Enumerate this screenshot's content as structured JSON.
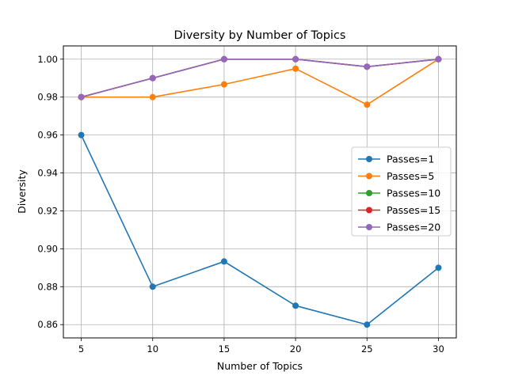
{
  "chart_data": {
    "type": "line",
    "title": "Diversity by Number of Topics",
    "xlabel": "Number of Topics",
    "ylabel": "Diversity",
    "x": [
      5,
      10,
      15,
      20,
      25,
      30
    ],
    "xticks": [
      "5",
      "10",
      "15",
      "20",
      "25",
      "30"
    ],
    "yticks": [
      "0.86",
      "0.88",
      "0.90",
      "0.92",
      "0.94",
      "0.96",
      "0.98",
      "1.00"
    ],
    "ytick_values": [
      0.86,
      0.88,
      0.9,
      0.92,
      0.94,
      0.96,
      0.98,
      1.0
    ],
    "xlim": [
      3.75,
      31.25
    ],
    "ylim": [
      0.853,
      1.007
    ],
    "grid": true,
    "legend_position": "center-right",
    "series": [
      {
        "name": "Passes=1",
        "color": "#1f77b4",
        "values": [
          0.96,
          0.88,
          0.8933,
          0.87,
          0.86,
          0.89
        ]
      },
      {
        "name": "Passes=5",
        "color": "#ff7f0e",
        "values": [
          0.98,
          0.98,
          0.9867,
          0.995,
          0.976,
          1.0
        ]
      },
      {
        "name": "Passes=10",
        "color": "#2ca02c",
        "values": [
          0.98,
          0.99,
          1.0,
          1.0,
          0.996,
          1.0
        ]
      },
      {
        "name": "Passes=15",
        "color": "#d62728",
        "values": [
          0.98,
          0.99,
          1.0,
          1.0,
          0.996,
          1.0
        ]
      },
      {
        "name": "Passes=20",
        "color": "#9467bd",
        "values": [
          0.98,
          0.99,
          1.0,
          1.0,
          0.996,
          1.0
        ]
      }
    ]
  }
}
